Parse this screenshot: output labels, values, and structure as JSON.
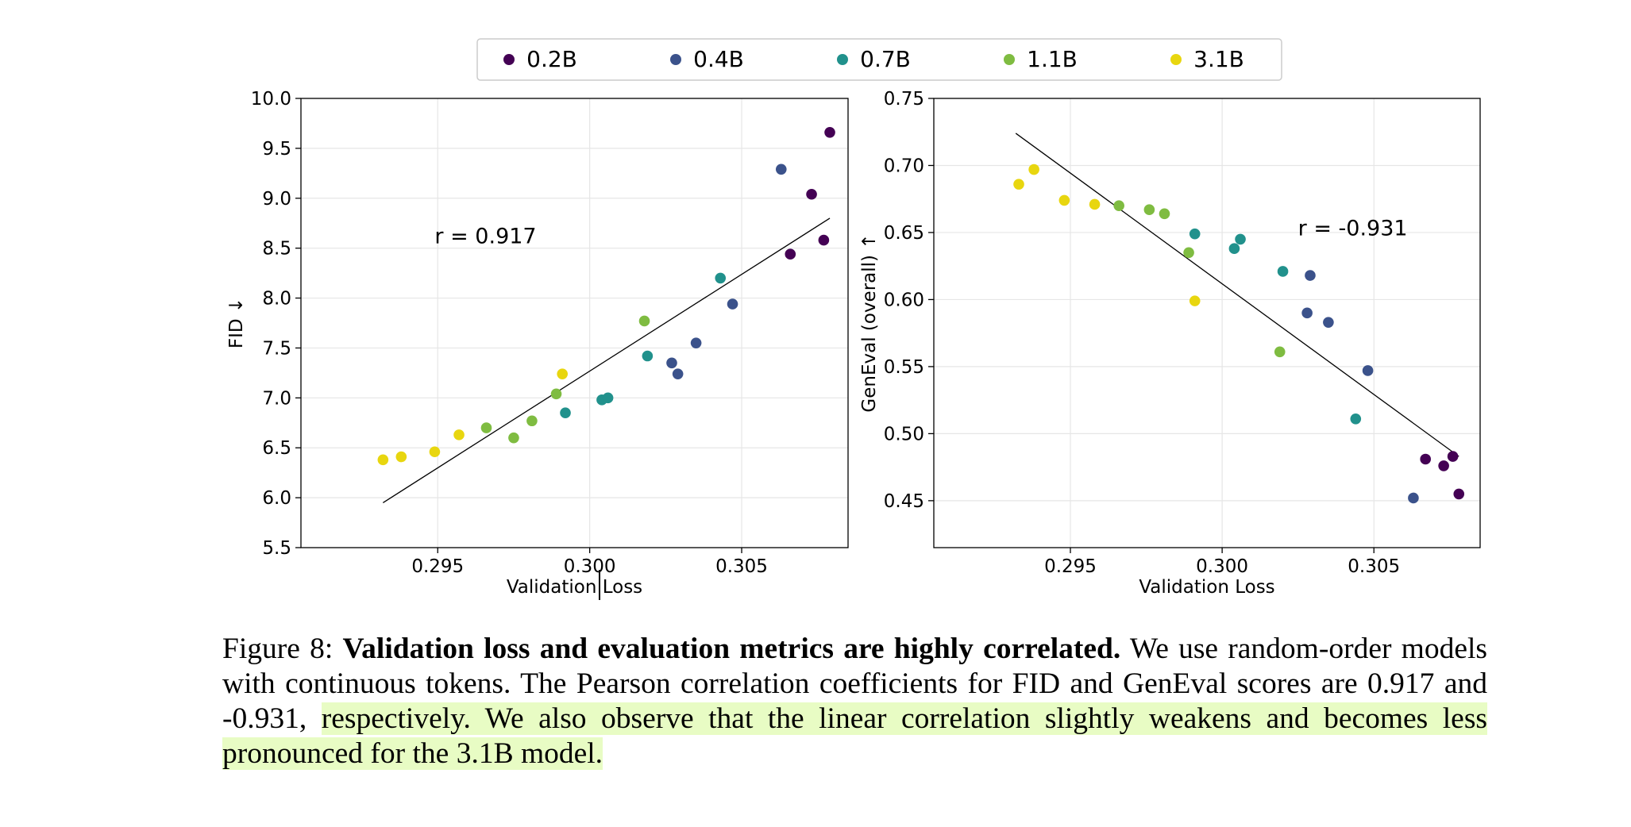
{
  "legend": [
    {
      "label": "0.2B",
      "color": "#440154"
    },
    {
      "label": "0.4B",
      "color": "#3b528b"
    },
    {
      "label": "0.7B",
      "color": "#21918c"
    },
    {
      "label": "1.1B",
      "color": "#7fbc41"
    },
    {
      "label": "3.1B",
      "color": "#e8d60f"
    }
  ],
  "chart_data": [
    {
      "type": "scatter",
      "xlabel": "Validation Loss",
      "ylabel": "FID ↓",
      "xlim": [
        0.2905,
        0.3085
      ],
      "ylim": [
        5.5,
        10.0
      ],
      "xticks": [
        0.295,
        0.3,
        0.305
      ],
      "xtick_labels": [
        "0.295",
        "0.300",
        "0.305"
      ],
      "yticks": [
        5.5,
        6.0,
        6.5,
        7.0,
        7.5,
        8.0,
        8.5,
        9.0,
        9.5,
        10.0
      ],
      "ytick_labels": [
        "5.5",
        "6.0",
        "6.5",
        "7.0",
        "7.5",
        "8.0",
        "8.5",
        "9.0",
        "9.5",
        "10.0"
      ],
      "grid": true,
      "annotation": {
        "text": "r = 0.917",
        "x": 0.2949,
        "y": 8.55
      },
      "fit_line": {
        "x": [
          0.2932,
          0.3079
        ],
        "y": [
          5.95,
          8.8
        ]
      },
      "series": [
        {
          "name": "0.2B",
          "x": [
            0.3079,
            0.3073,
            0.3066,
            0.3077
          ],
          "y": [
            9.66,
            9.04,
            8.44,
            8.58
          ]
        },
        {
          "name": "0.4B",
          "x": [
            0.3063,
            0.3047,
            0.3035,
            0.3027,
            0.3029
          ],
          "y": [
            9.29,
            7.94,
            7.55,
            7.35,
            7.24
          ]
        },
        {
          "name": "0.7B",
          "x": [
            0.3043,
            0.3019,
            0.3004,
            0.3006,
            0.2992
          ],
          "y": [
            8.2,
            7.42,
            6.98,
            7.0,
            6.85
          ]
        },
        {
          "name": "1.1B",
          "x": [
            0.3018,
            0.2989,
            0.2981,
            0.2966,
            0.2975
          ],
          "y": [
            7.77,
            7.04,
            6.77,
            6.7,
            6.6
          ]
        },
        {
          "name": "3.1B",
          "x": [
            0.2991,
            0.2957,
            0.2949,
            0.2938,
            0.2932
          ],
          "y": [
            7.24,
            6.63,
            6.46,
            6.41,
            6.38
          ]
        }
      ]
    },
    {
      "type": "scatter",
      "xlabel": "Validation Loss",
      "ylabel": "GenEval (overall) ↑",
      "xlim": [
        0.2905,
        0.3085
      ],
      "ylim": [
        0.415,
        0.75
      ],
      "xticks": [
        0.295,
        0.3,
        0.305
      ],
      "xtick_labels": [
        "0.295",
        "0.300",
        "0.305"
      ],
      "yticks": [
        0.45,
        0.5,
        0.55,
        0.6,
        0.65,
        0.7,
        0.75
      ],
      "ytick_labels": [
        "0.45",
        "0.50",
        "0.55",
        "0.60",
        "0.65",
        "0.70",
        "0.75"
      ],
      "grid": true,
      "annotation": {
        "text": "r = -0.931",
        "x": 0.3025,
        "y": 0.648
      },
      "fit_line": {
        "x": [
          0.2932,
          0.3078
        ],
        "y": [
          0.724,
          0.483
        ]
      },
      "series": [
        {
          "name": "0.2B",
          "x": [
            0.3067,
            0.3073,
            0.3076,
            0.3078
          ],
          "y": [
            0.481,
            0.476,
            0.483,
            0.455
          ]
        },
        {
          "name": "0.4B",
          "x": [
            0.3063,
            0.3048,
            0.3035,
            0.3028,
            0.3029
          ],
          "y": [
            0.452,
            0.547,
            0.583,
            0.59,
            0.618
          ]
        },
        {
          "name": "0.7B",
          "x": [
            0.3044,
            0.302,
            0.3006,
            0.3004,
            0.2991
          ],
          "y": [
            0.511,
            0.621,
            0.645,
            0.638,
            0.649
          ]
        },
        {
          "name": "1.1B",
          "x": [
            0.3019,
            0.2989,
            0.2981,
            0.2976,
            0.2966
          ],
          "y": [
            0.561,
            0.635,
            0.664,
            0.667,
            0.67
          ]
        },
        {
          "name": "3.1B",
          "x": [
            0.2991,
            0.2958,
            0.2948,
            0.2938,
            0.2933
          ],
          "y": [
            0.599,
            0.671,
            0.674,
            0.697,
            0.686
          ]
        }
      ]
    }
  ],
  "caption": {
    "label": "Figure 8:",
    "title": "Validation loss and evaluation metrics are highly correlated.",
    "body_plain": "We use random-order models with continuous tokens. The Pearson correlation coefficients for FID and GenEval scores are 0.917 and -0.931,",
    "body_highlighted": "respectively. We also observe that the linear correlation slightly weakens and becomes less pronounced for the 3.1B model."
  }
}
